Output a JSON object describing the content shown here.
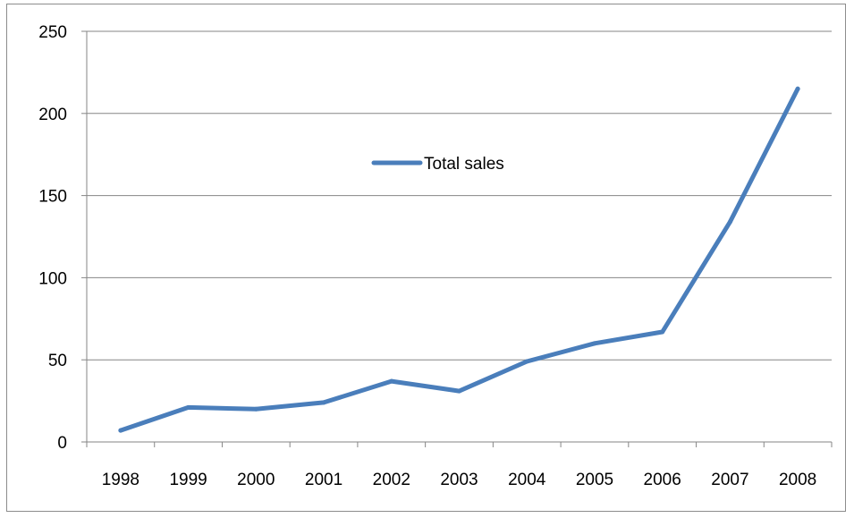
{
  "chart_data": {
    "type": "line",
    "categories": [
      "1998",
      "1999",
      "2000",
      "2001",
      "2002",
      "2003",
      "2004",
      "2005",
      "2006",
      "2007",
      "2008"
    ],
    "series": [
      {
        "name": "Total sales",
        "values": [
          7,
          21,
          20,
          24,
          37,
          31,
          49,
          60,
          67,
          134,
          215
        ],
        "color": "#4a7ebb"
      }
    ],
    "ylim": [
      0,
      250
    ],
    "y_ticks": [
      "0",
      "50",
      "100",
      "150",
      "200",
      "250"
    ],
    "grid": "horizontal",
    "legend_position": "inside-top-center",
    "title": "",
    "xlabel": "",
    "ylabel": ""
  }
}
